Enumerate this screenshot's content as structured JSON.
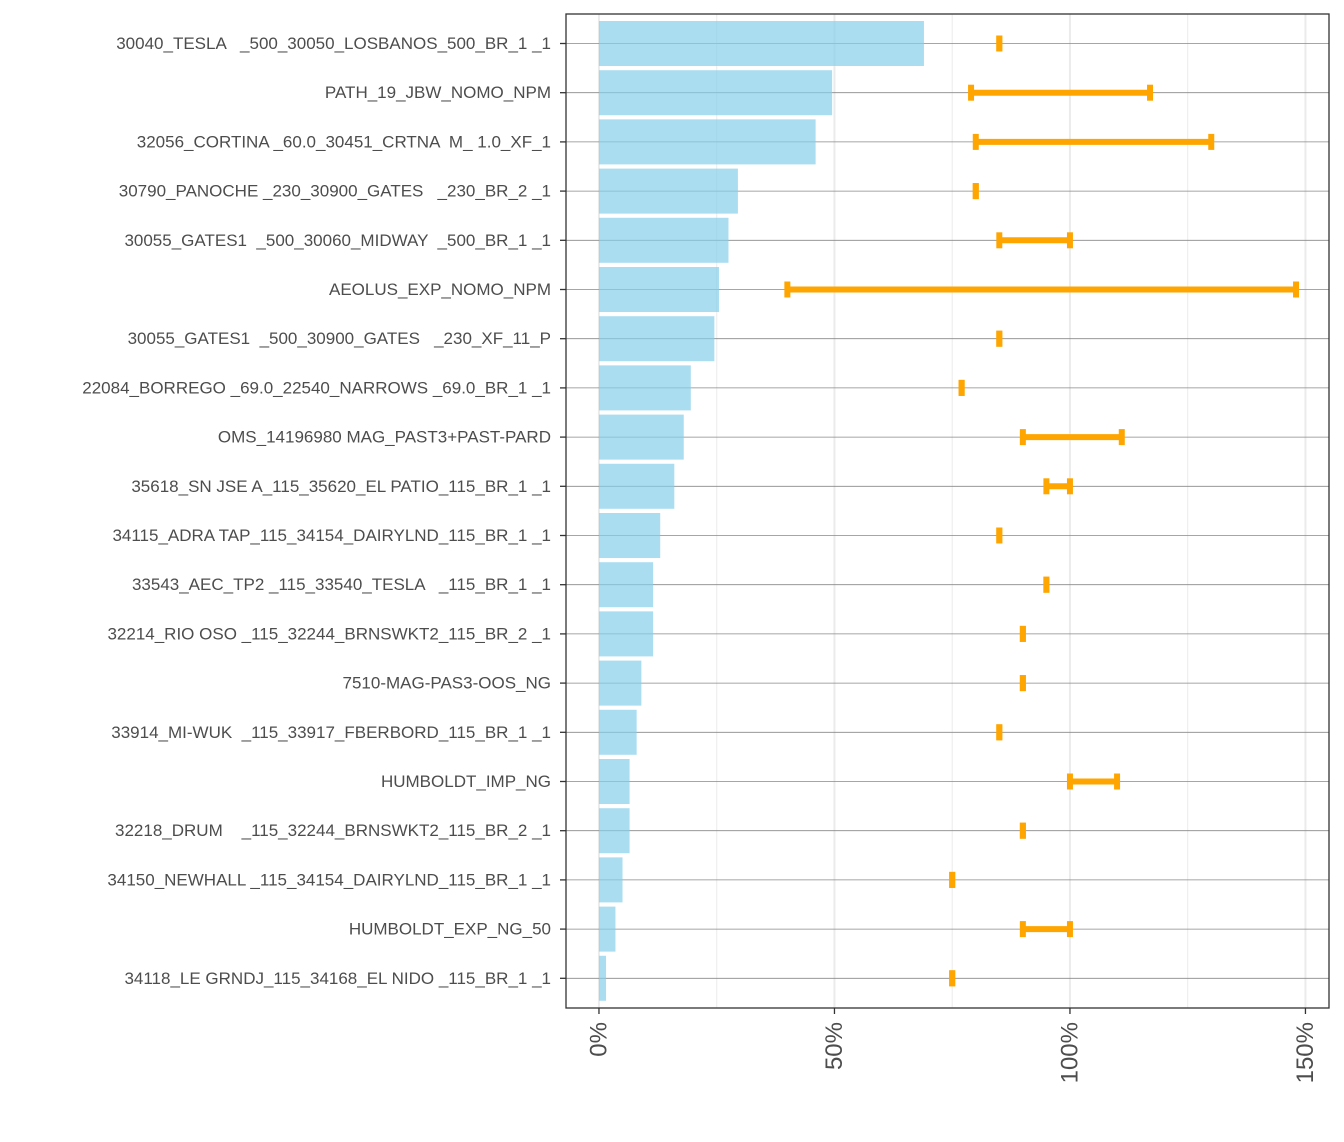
{
  "chart_data": {
    "type": "bar",
    "orientation": "horizontal",
    "title": "",
    "xlabel": "",
    "ylabel": "",
    "x_axis_format": "percent",
    "xlim": [
      -7,
      155
    ],
    "x_ticks": [
      0,
      50,
      100,
      150
    ],
    "x_tick_labels": [
      "0%",
      "50%",
      "100%",
      "150%"
    ],
    "grid": true,
    "legend": "none",
    "colors": {
      "bar": "#87CEEB",
      "range": "#FFA500",
      "panel_border": "#333333",
      "grid_major": "#ebebeb",
      "row_line": "#888888"
    },
    "categories": [
      "30040_TESLA   _500_30050_LOSBANOS_500_BR_1 _1",
      "PATH_19_JBW_NOMO_NPM",
      "32056_CORTINA _60.0_30451_CRTNA  M_ 1.0_XF_1",
      "30790_PANOCHE _230_30900_GATES   _230_BR_2 _1",
      "30055_GATES1  _500_30060_MIDWAY  _500_BR_1 _1",
      "AEOLUS_EXP_NOMO_NPM",
      "30055_GATES1  _500_30900_GATES   _230_XF_11_P",
      "22084_BORREGO _69.0_22540_NARROWS _69.0_BR_1 _1",
      "OMS_14196980 MAG_PAST3+PAST-PARD",
      "35618_SN JSE A_115_35620_EL PATIO_115_BR_1 _1",
      "34115_ADRA TAP_115_34154_DAIRYLND_115_BR_1 _1",
      "33543_AEC_TP2 _115_33540_TESLA   _115_BR_1 _1",
      "32214_RIO OSO _115_32244_BRNSWKT2_115_BR_2 _1",
      "7510-MAG-PAS3-OOS_NG",
      "33914_MI-WUK  _115_33917_FBERBORD_115_BR_1 _1",
      "HUMBOLDT_IMP_NG",
      "32218_DRUM    _115_32244_BRNSWKT2_115_BR_2 _1",
      "34150_NEWHALL _115_34154_DAIRYLND_115_BR_1 _1",
      "HUMBOLDT_EXP_NG_50",
      "34118_LE GRNDJ_115_34168_EL NIDO _115_BR_1 _1"
    ],
    "series": [
      {
        "name": "bar",
        "values": [
          69,
          49.5,
          46,
          29.5,
          27.5,
          25.5,
          24.5,
          19.5,
          18,
          16,
          13,
          11.5,
          11.5,
          9,
          8,
          6.5,
          6.5,
          5,
          3.5,
          1.5
        ]
      },
      {
        "name": "range",
        "low": [
          85,
          79,
          80,
          80,
          85,
          40,
          85,
          77,
          90,
          95,
          85,
          95,
          90,
          90,
          85,
          100,
          90,
          75,
          90,
          75
        ],
        "high": [
          85,
          117,
          130,
          80,
          100,
          148,
          85,
          77,
          111,
          100,
          85,
          95,
          90,
          90,
          85,
          110,
          90,
          75,
          100,
          75
        ]
      }
    ]
  }
}
